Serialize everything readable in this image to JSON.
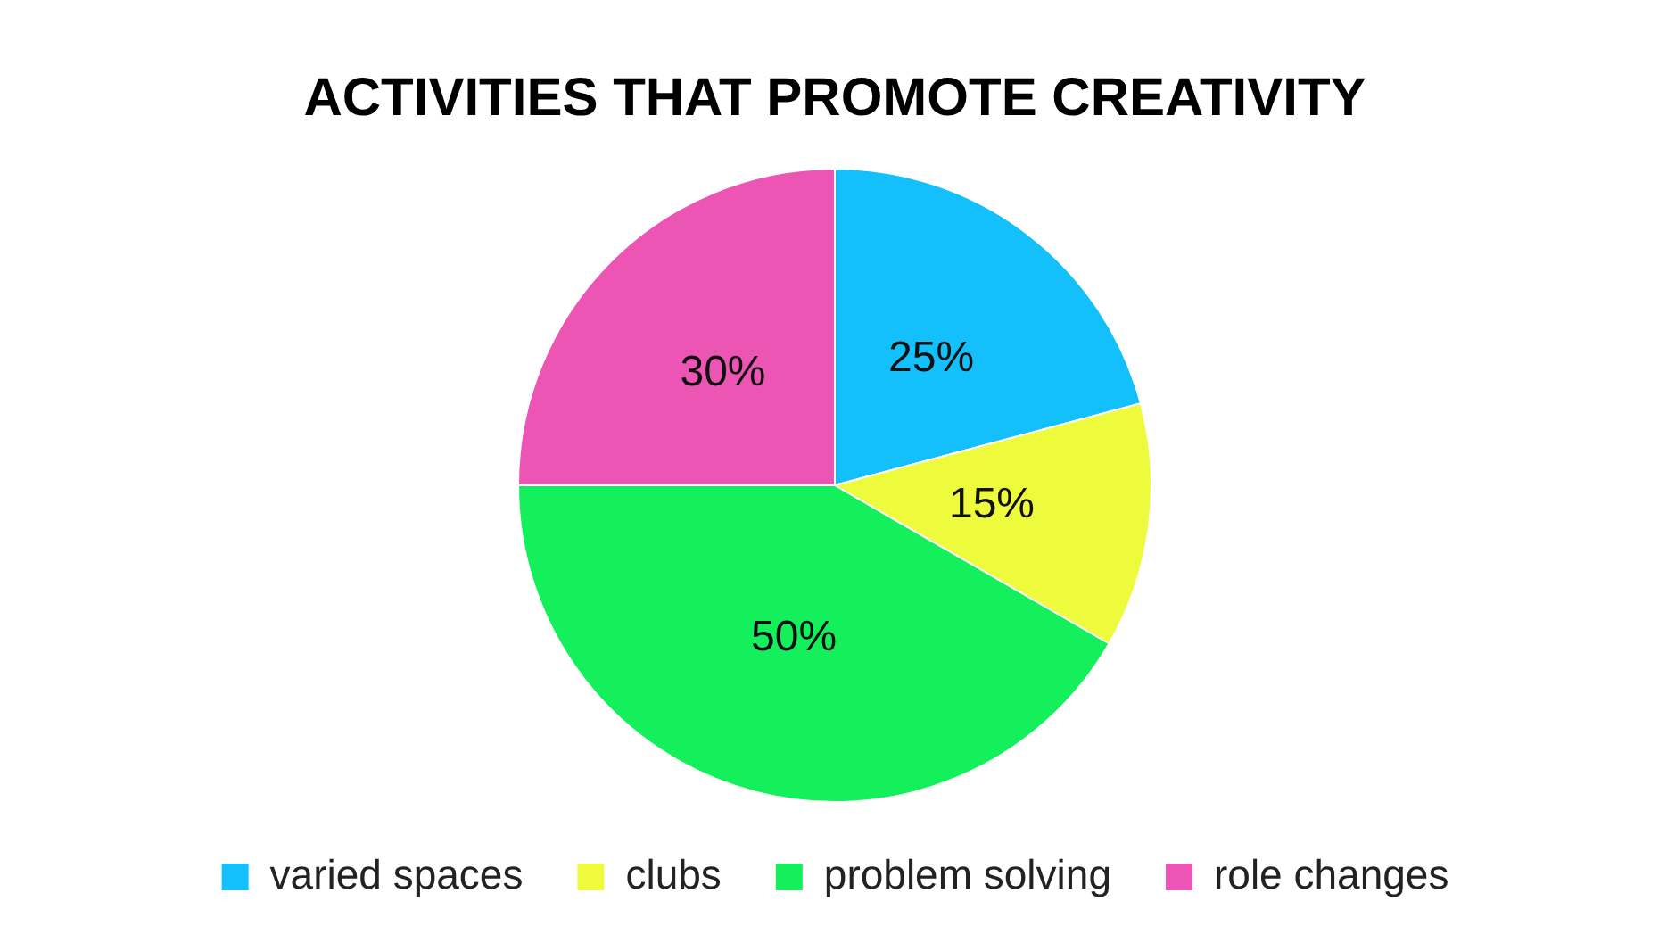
{
  "chart_data": {
    "type": "pie",
    "title": "ACTIVITIES THAT PROMOTE CREATIVITY",
    "categories": [
      "varied spaces",
      "clubs",
      "problem solving",
      "role changes"
    ],
    "values": [
      25,
      15,
      50,
      30
    ],
    "colors": [
      "#13c0fb",
      "#eefb3c",
      "#14f05c",
      "#ec55b4"
    ],
    "value_labels": [
      "25%",
      "15%",
      "50%",
      "30%"
    ],
    "legend": "bottom"
  }
}
